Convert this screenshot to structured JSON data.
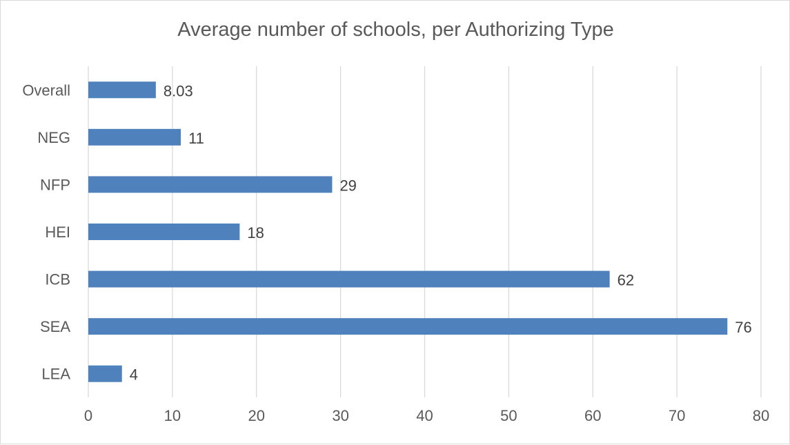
{
  "chart_data": {
    "type": "bar",
    "orientation": "horizontal",
    "title": "Average number of schools, per Authorizing Type",
    "xlabel": "",
    "ylabel": "",
    "categories": [
      "Overall",
      "NEG",
      "NFP",
      "HEI",
      "ICB",
      "SEA",
      "LEA"
    ],
    "values": [
      8.03,
      11,
      29,
      18,
      62,
      76,
      4
    ],
    "data_labels": [
      "8.03",
      "11",
      "29",
      "18",
      "62",
      "76",
      "4"
    ],
    "xlim": [
      0,
      80
    ],
    "x_ticks": [
      0,
      10,
      20,
      30,
      40,
      50,
      60,
      70,
      80
    ],
    "x_tick_labels": [
      "0",
      "10",
      "20",
      "30",
      "40",
      "50",
      "60",
      "70",
      "80"
    ],
    "grid": "vertical",
    "legend": "none",
    "bar_color": "#4f81bd",
    "grid_color": "#d9d9d9"
  }
}
